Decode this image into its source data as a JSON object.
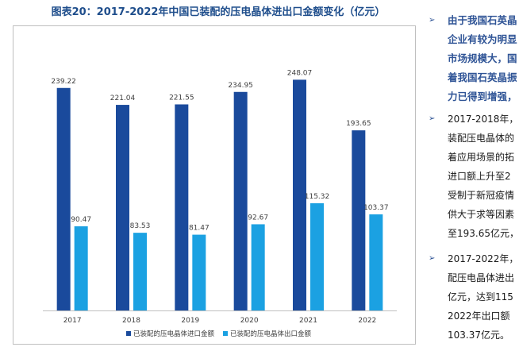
{
  "title": "图表20：2017-2022年中国已装配的压电晶体进出口金额变化（亿元）",
  "colors": {
    "import": "#1a4a9c",
    "export": "#1ba1e2",
    "title": "#1f4e8c",
    "accent_text": "#2f5496",
    "axis": "#bfbfbf"
  },
  "chart_data": {
    "type": "bar",
    "title": "图表20：2017-2022年中国已装配的压电晶体进出口金额变化（亿元）",
    "categories": [
      "2017",
      "2018",
      "2019",
      "2020",
      "2021",
      "2022"
    ],
    "series": [
      {
        "name": "已装配的压电晶体进口金额",
        "values": [
          239.22,
          221.04,
          221.55,
          234.95,
          248.07,
          193.65
        ]
      },
      {
        "name": "已装配的压电晶体出口金额",
        "values": [
          90.47,
          83.53,
          81.47,
          92.67,
          115.32,
          103.37
        ]
      }
    ],
    "value_labels": {
      "import": [
        "239.22",
        "221.04",
        "221.55",
        "234.95",
        "248.07",
        "193.65"
      ],
      "export": [
        "90.47",
        "83.53",
        "81.47",
        "92.67",
        "115.32",
        "103.37"
      ]
    },
    "ylim": [
      0,
      280
    ],
    "grid": false,
    "legend_position": "bottom",
    "xlabel": "",
    "ylabel": ""
  },
  "right_text": {
    "bullet_symbol": "➢",
    "p1_lines": [
      "由于我国石英晶",
      "企业有较为明显",
      "市场规模大，国",
      "着我国石英晶振",
      "力已得到增强，"
    ],
    "p2_lines": [
      "2017-2018年，",
      "装配压电晶体的",
      "着应用场景的拓",
      "进口额上升至2",
      "受制于新冠疫情",
      "供大于求等因素",
      "至193.65亿元，"
    ],
    "p3_lines": [
      "2017-2022年，",
      "配压电晶体进出",
      "亿元，达到115",
      "2022年出口额",
      "103.37亿元。"
    ]
  }
}
